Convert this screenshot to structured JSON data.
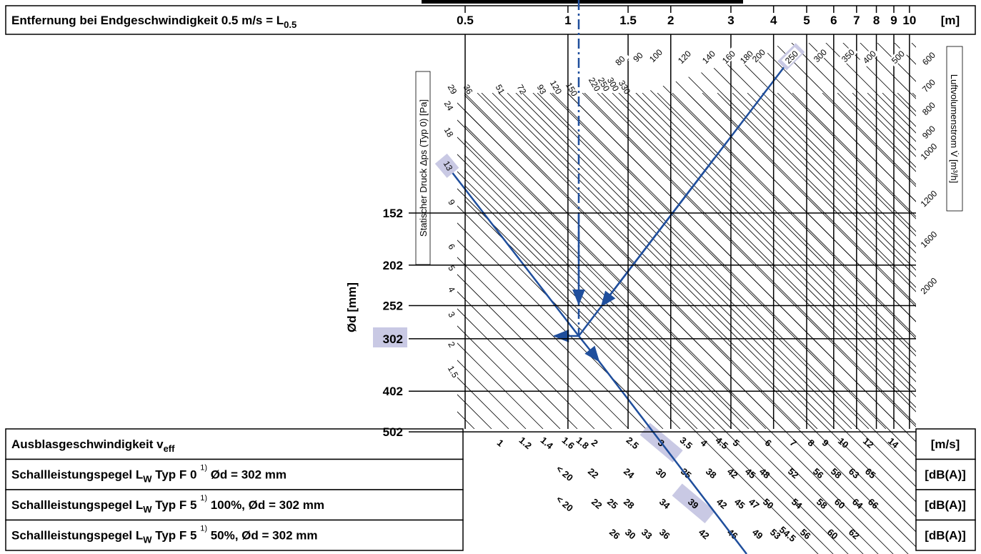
{
  "distance_scale": {
    "label": [
      "Entfernung bei Endgeschwindigkeit 0.5 m/s = L",
      "0.5"
    ],
    "ticks": [
      "0.5",
      "1",
      "1.5",
      "2",
      "3",
      "4",
      "5",
      "6",
      "7",
      "8",
      "9",
      "10"
    ],
    "unit": "[m]"
  },
  "diameter_axis": {
    "label": "Ød [mm]",
    "ticks": [
      "152",
      "202",
      "252",
      "302",
      "402",
      "502"
    ]
  },
  "pressure_scale": {
    "label": "Statischer Druck Δps (Typ 0) [Pa]",
    "ticks": [
      "29",
      "36",
      "51",
      "72",
      "93",
      "120",
      "150",
      "220",
      "250",
      "300",
      "330",
      "24",
      "18",
      "13",
      "9",
      "6",
      "5",
      "4",
      "3",
      "2",
      "1.5"
    ]
  },
  "volume_scale": {
    "label": "Luftvolumenstrom V̇ [m³/h]",
    "ticks": [
      "80",
      "90",
      "100",
      "120",
      "140",
      "160",
      "180",
      "200",
      "250",
      "300",
      "350",
      "400",
      "500",
      "600",
      "700",
      "800",
      "900",
      "1000",
      "1200",
      "1600",
      "2000"
    ]
  },
  "rows": [
    {
      "label": [
        "Ausblasgeschwindigkeit v",
        "eff"
      ],
      "values": [
        "1",
        "1.2",
        "1.4",
        "1.6",
        "1.8",
        "2",
        "2.5",
        "3",
        "3.5",
        "4",
        "4.5",
        "5",
        "6",
        "7",
        "8",
        "9",
        "10",
        "12",
        "14"
      ],
      "unit": "[m/s]"
    },
    {
      "label": [
        "Schallleistungspegel L",
        "W",
        " Typ F 0 ",
        "1)",
        " Ød = 302 mm"
      ],
      "values": [
        "< 20",
        "22",
        "24",
        "30",
        "35",
        "38",
        "42",
        "45",
        "48",
        "52",
        "56",
        "58",
        "63",
        "65"
      ],
      "unit": "[dB(A)]"
    },
    {
      "label": [
        "Schallleistungspegel L",
        "W",
        " Typ F 5 ",
        "1)",
        " 100%, Ød = 302 mm"
      ],
      "values": [
        "< 20",
        "22",
        "25",
        "28",
        "34",
        "39",
        "42",
        "45",
        "47",
        "50",
        "54",
        "58",
        "60",
        "64",
        "66"
      ],
      "unit": "[dB(A)]"
    },
    {
      "label": [
        "Schallleistungspegel L",
        "W",
        " Typ F 5 ",
        "1)",
        "   50%, Ød = 302 mm"
      ],
      "values": [
        "26",
        "30",
        "33",
        "36",
        "42",
        "46",
        "49",
        "53",
        "54.5",
        "56",
        "60",
        "62"
      ],
      "unit": "[dB(A)]"
    }
  ]
}
